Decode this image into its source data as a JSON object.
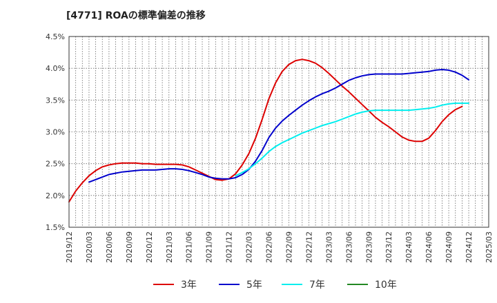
{
  "title": "[4771]  ROAの標準偏差の推移",
  "chart_data": {
    "type": "line",
    "title": "[4771]  ROAの標準偏差の推移",
    "xlabel": "",
    "ylabel": "",
    "ylim": [
      1.5,
      4.5
    ],
    "yticks": [
      1.5,
      2.0,
      2.5,
      3.0,
      3.5,
      4.0,
      4.5
    ],
    "ytick_labels": [
      "1.5%",
      "2.0%",
      "2.5%",
      "3.0%",
      "3.5%",
      "4.0%",
      "4.5%"
    ],
    "x_tick_labels": [
      "2019/12",
      "2020/03",
      "2020/06",
      "2020/09",
      "2020/12",
      "2021/03",
      "2021/06",
      "2021/09",
      "2021/12",
      "2022/03",
      "2022/06",
      "2022/09",
      "2022/12",
      "2023/03",
      "2023/06",
      "2023/09",
      "2023/12",
      "2024/03",
      "2024/06",
      "2024/09",
      "2024/12",
      "2025/03"
    ],
    "grid": true,
    "legend_position": "bottom",
    "series": [
      {
        "name": "3年",
        "color": "#dd0000",
        "points": [
          [
            "2019/12",
            1.9
          ],
          [
            "2020/01",
            2.07
          ],
          [
            "2020/02",
            2.2
          ],
          [
            "2020/03",
            2.31
          ],
          [
            "2020/04",
            2.39
          ],
          [
            "2020/05",
            2.45
          ],
          [
            "2020/06",
            2.48
          ],
          [
            "2020/07",
            2.5
          ],
          [
            "2020/08",
            2.51
          ],
          [
            "2020/09",
            2.51
          ],
          [
            "2020/10",
            2.51
          ],
          [
            "2020/11",
            2.5
          ],
          [
            "2020/12",
            2.5
          ],
          [
            "2021/01",
            2.49
          ],
          [
            "2021/02",
            2.49
          ],
          [
            "2021/03",
            2.49
          ],
          [
            "2021/04",
            2.49
          ],
          [
            "2021/05",
            2.48
          ],
          [
            "2021/06",
            2.45
          ],
          [
            "2021/07",
            2.4
          ],
          [
            "2021/08",
            2.35
          ],
          [
            "2021/09",
            2.3
          ],
          [
            "2021/10",
            2.25
          ],
          [
            "2021/11",
            2.24
          ],
          [
            "2021/12",
            2.26
          ],
          [
            "2022/01",
            2.34
          ],
          [
            "2022/02",
            2.48
          ],
          [
            "2022/03",
            2.66
          ],
          [
            "2022/04",
            2.9
          ],
          [
            "2022/05",
            3.2
          ],
          [
            "2022/06",
            3.52
          ],
          [
            "2022/07",
            3.77
          ],
          [
            "2022/08",
            3.95
          ],
          [
            "2022/09",
            4.06
          ],
          [
            "2022/10",
            4.12
          ],
          [
            "2022/11",
            4.14
          ],
          [
            "2022/12",
            4.12
          ],
          [
            "2023/01",
            4.08
          ],
          [
            "2023/02",
            4.01
          ],
          [
            "2023/03",
            3.92
          ],
          [
            "2023/04",
            3.82
          ],
          [
            "2023/05",
            3.72
          ],
          [
            "2023/06",
            3.63
          ],
          [
            "2023/07",
            3.53
          ],
          [
            "2023/08",
            3.43
          ],
          [
            "2023/09",
            3.33
          ],
          [
            "2023/10",
            3.23
          ],
          [
            "2023/11",
            3.15
          ],
          [
            "2023/12",
            3.08
          ],
          [
            "2024/01",
            3.0
          ],
          [
            "2024/02",
            2.92
          ],
          [
            "2024/03",
            2.87
          ],
          [
            "2024/04",
            2.85
          ],
          [
            "2024/05",
            2.85
          ],
          [
            "2024/06",
            2.9
          ],
          [
            "2024/07",
            3.02
          ],
          [
            "2024/08",
            3.16
          ],
          [
            "2024/09",
            3.27
          ],
          [
            "2024/10",
            3.35
          ],
          [
            "2024/11",
            3.4
          ]
        ]
      },
      {
        "name": "5年",
        "color": "#0000cc",
        "points": [
          [
            "2020/03",
            2.21
          ],
          [
            "2020/04",
            2.25
          ],
          [
            "2020/05",
            2.29
          ],
          [
            "2020/06",
            2.33
          ],
          [
            "2020/07",
            2.35
          ],
          [
            "2020/08",
            2.37
          ],
          [
            "2020/09",
            2.38
          ],
          [
            "2020/10",
            2.39
          ],
          [
            "2020/11",
            2.4
          ],
          [
            "2020/12",
            2.4
          ],
          [
            "2021/01",
            2.4
          ],
          [
            "2021/02",
            2.41
          ],
          [
            "2021/03",
            2.42
          ],
          [
            "2021/04",
            2.42
          ],
          [
            "2021/05",
            2.41
          ],
          [
            "2021/06",
            2.39
          ],
          [
            "2021/07",
            2.36
          ],
          [
            "2021/08",
            2.33
          ],
          [
            "2021/09",
            2.29
          ],
          [
            "2021/10",
            2.27
          ],
          [
            "2021/11",
            2.26
          ],
          [
            "2021/12",
            2.26
          ],
          [
            "2022/01",
            2.28
          ],
          [
            "2022/02",
            2.33
          ],
          [
            "2022/03",
            2.41
          ],
          [
            "2022/04",
            2.54
          ],
          [
            "2022/05",
            2.71
          ],
          [
            "2022/06",
            2.91
          ],
          [
            "2022/07",
            3.06
          ],
          [
            "2022/08",
            3.17
          ],
          [
            "2022/09",
            3.26
          ],
          [
            "2022/10",
            3.34
          ],
          [
            "2022/11",
            3.42
          ],
          [
            "2022/12",
            3.49
          ],
          [
            "2023/01",
            3.55
          ],
          [
            "2023/02",
            3.6
          ],
          [
            "2023/03",
            3.64
          ],
          [
            "2023/04",
            3.69
          ],
          [
            "2023/05",
            3.75
          ],
          [
            "2023/06",
            3.81
          ],
          [
            "2023/07",
            3.85
          ],
          [
            "2023/08",
            3.88
          ],
          [
            "2023/09",
            3.9
          ],
          [
            "2023/10",
            3.91
          ],
          [
            "2023/11",
            3.91
          ],
          [
            "2023/12",
            3.91
          ],
          [
            "2024/01",
            3.91
          ],
          [
            "2024/02",
            3.91
          ],
          [
            "2024/03",
            3.92
          ],
          [
            "2024/04",
            3.93
          ],
          [
            "2024/05",
            3.94
          ],
          [
            "2024/06",
            3.95
          ],
          [
            "2024/07",
            3.97
          ],
          [
            "2024/08",
            3.98
          ],
          [
            "2024/09",
            3.97
          ],
          [
            "2024/10",
            3.94
          ],
          [
            "2024/11",
            3.89
          ],
          [
            "2024/12",
            3.82
          ]
        ]
      },
      {
        "name": "7年",
        "color": "#00eeee",
        "points": [
          [
            "2022/01",
            2.31
          ],
          [
            "2022/02",
            2.36
          ],
          [
            "2022/03",
            2.42
          ],
          [
            "2022/04",
            2.5
          ],
          [
            "2022/05",
            2.59
          ],
          [
            "2022/06",
            2.69
          ],
          [
            "2022/07",
            2.77
          ],
          [
            "2022/08",
            2.83
          ],
          [
            "2022/09",
            2.88
          ],
          [
            "2022/10",
            2.93
          ],
          [
            "2022/11",
            2.98
          ],
          [
            "2022/12",
            3.02
          ],
          [
            "2023/01",
            3.06
          ],
          [
            "2023/02",
            3.1
          ],
          [
            "2023/03",
            3.13
          ],
          [
            "2023/04",
            3.16
          ],
          [
            "2023/05",
            3.2
          ],
          [
            "2023/06",
            3.24
          ],
          [
            "2023/07",
            3.28
          ],
          [
            "2023/08",
            3.31
          ],
          [
            "2023/09",
            3.33
          ],
          [
            "2023/10",
            3.34
          ],
          [
            "2023/11",
            3.34
          ],
          [
            "2023/12",
            3.34
          ],
          [
            "2024/01",
            3.34
          ],
          [
            "2024/02",
            3.34
          ],
          [
            "2024/03",
            3.34
          ],
          [
            "2024/04",
            3.35
          ],
          [
            "2024/05",
            3.36
          ],
          [
            "2024/06",
            3.37
          ],
          [
            "2024/07",
            3.39
          ],
          [
            "2024/08",
            3.42
          ],
          [
            "2024/09",
            3.44
          ],
          [
            "2024/10",
            3.45
          ],
          [
            "2024/11",
            3.45
          ],
          [
            "2024/12",
            3.45
          ]
        ]
      },
      {
        "name": "10年",
        "color": "#228822",
        "points": []
      }
    ]
  }
}
